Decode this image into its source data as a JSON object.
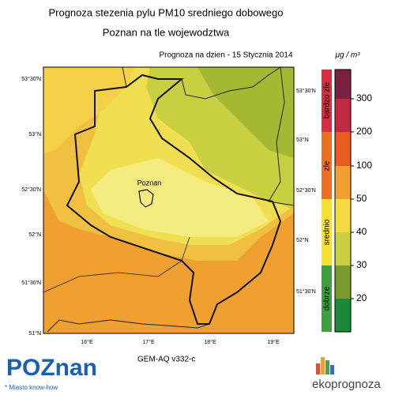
{
  "header": {
    "title": "Prognoza stezenia pylu PM10 sredniego dobowego",
    "subtitle": "Poznan na tle wojewodztwa",
    "date_line": "Prognoza na dzien -  15 Stycznia 2014"
  },
  "colorbar": {
    "unit": "μg / m³",
    "levels": [
      300,
      200,
      100,
      50,
      40,
      30,
      20
    ],
    "categories": [
      "bardzo zle",
      "zle",
      "srednio",
      "dobrze"
    ]
  },
  "map": {
    "lat_left": [
      "53°30'N",
      "53°N",
      "52°30'N",
      "52°N",
      "51°30'N",
      "51°N"
    ],
    "lat_right": [
      "53°30'N",
      "53°N",
      "52°30'N",
      "52°N",
      "51°30'N"
    ],
    "lon": [
      "16°E",
      "17°E",
      "18°E",
      "19°E"
    ],
    "city": "Poznan"
  },
  "footer": {
    "model": "GEM-AQ v332-c",
    "logo_left": "POZnan",
    "logo_left_tagline": "* Miasto know-how",
    "logo_right": "ekoprognoza"
  }
}
